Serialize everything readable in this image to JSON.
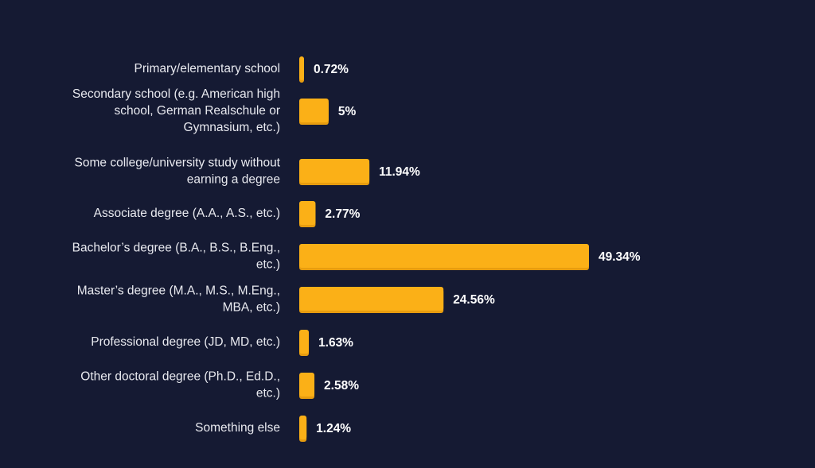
{
  "colors": {
    "background": "#151a33",
    "bar": "#fbb017",
    "bar_shadow": "#e79c0f",
    "label_text": "#e8e9ef",
    "value_text": "#ffffff"
  },
  "chart_data": {
    "type": "bar",
    "orientation": "horizontal",
    "title": "",
    "xlabel": "",
    "ylabel": "",
    "value_suffix": "%",
    "xlim": [
      0,
      49.34
    ],
    "grid": false,
    "legend": "none",
    "categories": [
      "Primary/elementary school",
      "Secondary school (e.g. American high school, German Realschule or Gymnasium, etc.)",
      "Some college/university study without earning a degree",
      "Associate degree (A.A., A.S., etc.)",
      "Bachelor’s degree (B.A., B.S., B.Eng., etc.)",
      "Master’s degree (M.A., M.S., M.Eng., MBA, etc.)",
      "Professional degree (JD, MD, etc.)",
      "Other doctoral degree (Ph.D., Ed.D., etc.)",
      "Something else"
    ],
    "category_lines": [
      [
        "Primary/elementary school"
      ],
      [
        "Secondary school (e.g. American high",
        "school, German Realschule or",
        "Gymnasium, etc.)"
      ],
      [
        "Some college/university study without",
        "earning a degree"
      ],
      [
        "Associate degree (A.A., A.S., etc.)"
      ],
      [
        "Bachelor’s degree (B.A., B.S., B.Eng.,",
        "etc.)"
      ],
      [
        "Master’s degree (M.A., M.S., M.Eng.,",
        "MBA, etc.)"
      ],
      [
        "Professional degree (JD, MD, etc.)"
      ],
      [
        "Other doctoral degree (Ph.D., Ed.D.,",
        "etc.)"
      ],
      [
        "Something else"
      ]
    ],
    "values": [
      0.72,
      5,
      11.94,
      2.77,
      49.34,
      24.56,
      1.63,
      2.58,
      1.24
    ],
    "value_labels": [
      "0.72%",
      "5%",
      "11.94%",
      "2.77%",
      "49.34%",
      "24.56%",
      "1.63%",
      "2.58%",
      "1.24%"
    ]
  }
}
